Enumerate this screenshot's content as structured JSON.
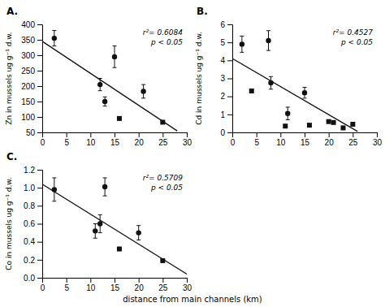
{
  "chart_data": [
    {
      "type": "scatter",
      "title": "A.",
      "ylabel": "Zn in mussels ug g⁻¹ d.w.",
      "annotations": [
        "r²= 0.6084",
        "p < 0.05"
      ],
      "xlim": [
        0,
        30
      ],
      "xticks": [
        0,
        5,
        10,
        15,
        20,
        25,
        30
      ],
      "ylim": [
        50,
        400
      ],
      "yticks": [
        50,
        100,
        150,
        200,
        250,
        300,
        350,
        400
      ],
      "series": [
        {
          "type": "scatter",
          "marker": "circle",
          "color": "#111111",
          "x": [
            2.5,
            12,
            13,
            15,
            21
          ],
          "values": [
            355,
            205,
            150,
            295,
            183
          ],
          "errors": [
            25,
            20,
            15,
            35,
            22
          ]
        },
        {
          "type": "scatter",
          "marker": "square",
          "color": "#111111",
          "x": [
            16,
            25
          ],
          "values": [
            95,
            83
          ]
        },
        {
          "type": "line",
          "color": "#111111",
          "x": [
            0,
            28
          ],
          "values": [
            345,
            55
          ]
        }
      ]
    },
    {
      "type": "scatter",
      "title": "B.",
      "ylabel": "Cd in mussels ug g⁻¹ d.w.",
      "annotations": [
        "r²= 0.4527",
        "p < 0.05"
      ],
      "xlim": [
        0,
        30
      ],
      "xticks": [
        0,
        5,
        10,
        15,
        20,
        25,
        30
      ],
      "ylim": [
        0,
        6
      ],
      "yticks": [
        0,
        1,
        2,
        3,
        4,
        5,
        6
      ],
      "series": [
        {
          "type": "scatter",
          "marker": "circle",
          "color": "#111111",
          "x": [
            2,
            7.5,
            8,
            11.5,
            15
          ],
          "values": [
            4.9,
            5.1,
            2.75,
            1.05,
            2.2
          ],
          "errors": [
            0.45,
            0.55,
            0.35,
            0.35,
            0.3
          ]
        },
        {
          "type": "scatter",
          "marker": "square",
          "color": "#111111",
          "x": [
            4,
            11,
            16,
            20,
            21,
            23,
            25
          ],
          "values": [
            2.3,
            0.35,
            0.4,
            0.6,
            0.55,
            0.25,
            0.45
          ]
        },
        {
          "type": "line",
          "color": "#111111",
          "x": [
            0,
            26
          ],
          "values": [
            4.1,
            0.05
          ]
        }
      ]
    },
    {
      "type": "scatter",
      "title": "C.",
      "ylabel": "Co in mussels ug g⁻¹ d.w.",
      "xlabel": "distance from main channels (km)",
      "annotations": [
        "r²= 0.5709",
        "p < 0.05"
      ],
      "xlim": [
        0,
        30
      ],
      "xticks": [
        0,
        5,
        10,
        15,
        20,
        25,
        30
      ],
      "ylim": [
        0.0,
        1.2
      ],
      "yticks": [
        {
          "value": 0.0,
          "label": "0.0"
        },
        0.2,
        0.4,
        0.6,
        0.8,
        {
          "value": 1.0,
          "label": "1.0"
        },
        1.2
      ],
      "series": [
        {
          "type": "scatter",
          "marker": "circle",
          "color": "#111111",
          "x": [
            2.5,
            11,
            12,
            13,
            20
          ],
          "values": [
            0.98,
            0.52,
            0.6,
            1.01,
            0.5
          ],
          "errors": [
            0.13,
            0.08,
            0.1,
            0.1,
            0.08
          ]
        },
        {
          "type": "scatter",
          "marker": "square",
          "color": "#111111",
          "x": [
            16,
            25
          ],
          "values": [
            0.32,
            0.19
          ]
        },
        {
          "type": "line",
          "color": "#111111",
          "x": [
            0,
            30
          ],
          "values": [
            1.04,
            0.04
          ]
        }
      ]
    }
  ]
}
